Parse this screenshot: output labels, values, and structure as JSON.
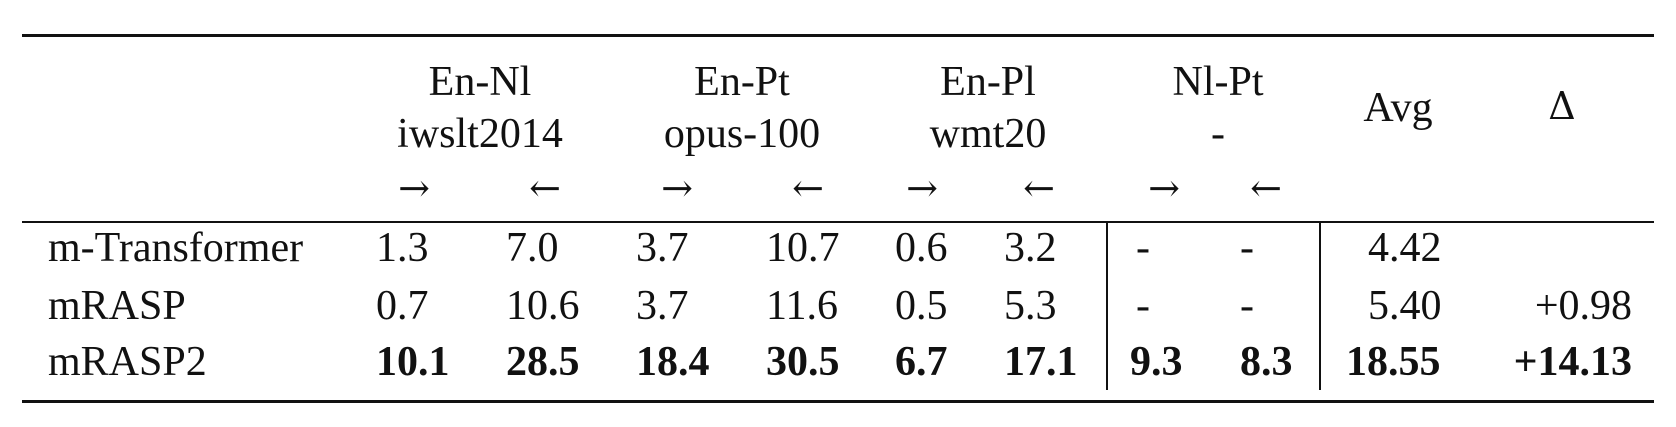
{
  "table": {
    "groups": [
      {
        "pair": "En-Nl",
        "dataset": "iwslt2014"
      },
      {
        "pair": "En-Pt",
        "dataset": "opus-100"
      },
      {
        "pair": "En-Pl",
        "dataset": "wmt20"
      },
      {
        "pair": "Nl-Pt",
        "dataset": "-"
      }
    ],
    "avg_label": "Avg",
    "delta_label": "Δ",
    "arrows": [
      "→",
      "←",
      "→",
      "←",
      "→",
      "←",
      "→",
      "←"
    ],
    "rows": [
      {
        "model": "m-Transformer",
        "values": [
          "1.3",
          "7.0",
          "3.7",
          "10.7",
          "0.6",
          "3.2",
          "-",
          "-"
        ],
        "avg": "4.42",
        "delta": ""
      },
      {
        "model": "mRASP",
        "values": [
          "0.7",
          "10.6",
          "3.7",
          "11.6",
          "0.5",
          "5.3",
          "-",
          "-"
        ],
        "avg": "5.40",
        "delta": "+0.98"
      },
      {
        "model": "mRASP2",
        "values": [
          "10.1",
          "28.5",
          "18.4",
          "30.5",
          "6.7",
          "17.1",
          "9.3",
          "8.3"
        ],
        "avg": "18.55",
        "delta": "+14.13"
      }
    ]
  }
}
